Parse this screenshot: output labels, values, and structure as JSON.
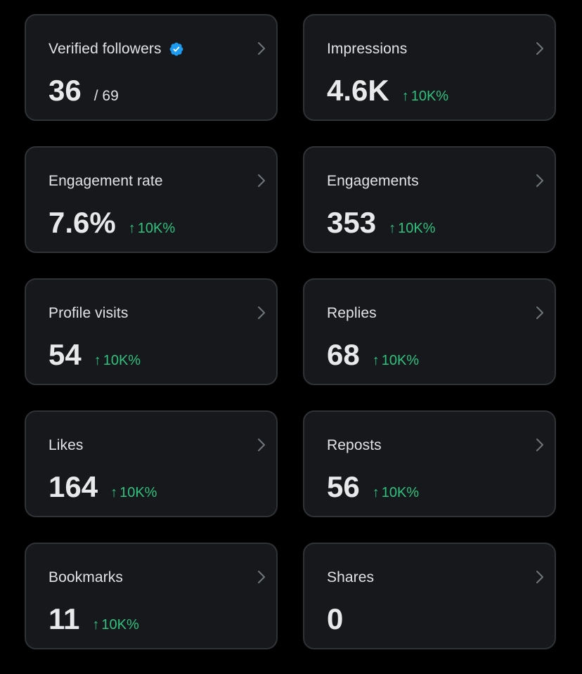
{
  "colors": {
    "background": "#000000",
    "card_background": "#16181c",
    "card_border": "#2f3336",
    "text_primary": "#e7e9ea",
    "text_secondary": "#e1e3e6",
    "positive": "#2ec27e",
    "verified_blue": "#1d9bf0"
  },
  "icons": {
    "chevron": "chevron-right-icon",
    "verified": "verified-badge-icon",
    "trend": "arrow-up-icon"
  },
  "cards": [
    {
      "label": "Verified followers",
      "value": "36",
      "suffix": "/ 69",
      "delta": null,
      "verified": true
    },
    {
      "label": "Impressions",
      "value": "4.6K",
      "delta": "10K%"
    },
    {
      "label": "Engagement rate",
      "value": "7.6%",
      "delta": "10K%"
    },
    {
      "label": "Engagements",
      "value": "353",
      "delta": "10K%"
    },
    {
      "label": "Profile visits",
      "value": "54",
      "delta": "10K%"
    },
    {
      "label": "Replies",
      "value": "68",
      "delta": "10K%"
    },
    {
      "label": "Likes",
      "value": "164",
      "delta": "10K%"
    },
    {
      "label": "Reposts",
      "value": "56",
      "delta": "10K%"
    },
    {
      "label": "Bookmarks",
      "value": "11",
      "delta": "10K%"
    },
    {
      "label": "Shares",
      "value": "0",
      "delta": null
    }
  ]
}
